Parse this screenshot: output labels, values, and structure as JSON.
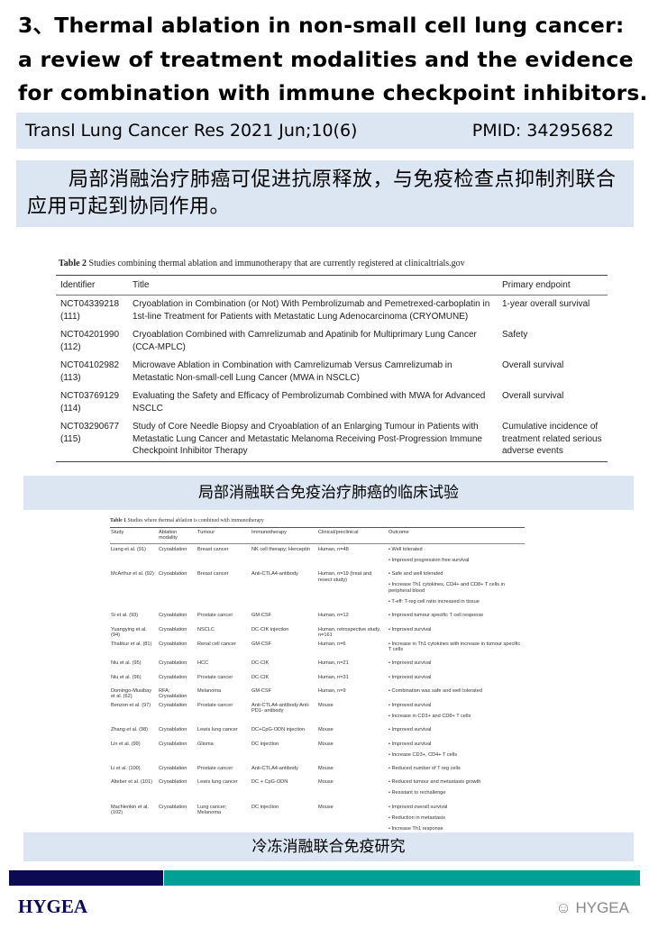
{
  "title": {
    "line1": "3、Thermal ablation in non-small cell lung cancer:",
    "line2": "a review of treatment modalities and the evidence",
    "line3": "for combination with immune checkpoint inhibitors."
  },
  "citation": {
    "journal": "Transl Lung Cancer Res 2021 Jun;10(6)",
    "pmid": "PMID: 34295682"
  },
  "summary": "局部消融治疗肺癌可促进抗原释放，与免疫检查点抑制剂联合应用可起到协同作用。",
  "table2": {
    "label": "Table 2",
    "caption": "Studies combining thermal ablation and immunotherapy that are currently registered at clinicaltrials.gov",
    "headers": [
      "Identifier",
      "Title",
      "Primary endpoint"
    ],
    "rows": [
      {
        "id": "NCT04339218 (111)",
        "title": "Cryoablation in Combination (or Not) With Pembrolizumab and Pemetrexed-carboplatin in 1st-line Treatment for Patients with Metastatic Lung Adenocarcinoma (CRYOMUNE)",
        "endpoint": "1-year overall survival"
      },
      {
        "id": "NCT04201990 (112)",
        "title": "Cryoablation Combined with Camrelizumab and Apatinib for Multiprimary Lung Cancer (CCA-MPLC)",
        "endpoint": "Safety"
      },
      {
        "id": "NCT04102982 (113)",
        "title": "Microwave Ablation in Combination with Camrelizumab Versus Camrelizumab in Metastatic Non-small-cell Lung Cancer (MWA in NSCLC)",
        "endpoint": "Overall survival"
      },
      {
        "id": "NCT03769129 (114)",
        "title": "Evaluating the Safety and Efficacy of Pembrolizumab Combined with MWA for Advanced NSCLC",
        "endpoint": "Overall survival"
      },
      {
        "id": "NCT03290677 (115)",
        "title": "Study of Core Needle Biopsy and Cryoablation of an Enlarging Tumour in Patients with Metastatic Lung Cancer and Metastatic Melanoma Receiving Post-Progression Immune Checkpoint Inhibitor Therapy",
        "endpoint": "Cumulative incidence of treatment related serious adverse events"
      }
    ]
  },
  "caption1": "局部消融联合免疫治疗肺癌的临床试验",
  "table1": {
    "label": "Table 1",
    "caption": "Studies where thermal ablation is combined with immunotherapy",
    "headers": [
      "Study",
      "Ablation modality",
      "Tumour",
      "Immunotherapy",
      "Clinical/preclinical",
      "Outcome"
    ],
    "rows": [
      {
        "study": "Liang et al. (91)",
        "modality": "Cryoablation",
        "tumour": "Breast cancer",
        "immuno": "NK cell therapy; Herceptin",
        "clinical": "Human, n=48",
        "outcomes": [
          "• Well tolerated",
          "• Improved progression free survival"
        ]
      },
      {
        "study": "McArthur et al. (92)",
        "modality": "Cryoablation",
        "tumour": "Breast cancer",
        "immuno": "Anti-CTLA4-antibody",
        "clinical": "Human, n=19 (treat and resect study)",
        "outcomes": [
          "• Safe and well tolerated",
          "• Increase Th1 cytokines, CD4+ and CD8+ T cells in peripheral blood",
          "• T-eff: T-reg cell ratio increased in tissue"
        ]
      },
      {
        "study": "Si et al. (93)",
        "modality": "Cryoablation",
        "tumour": "Prostate cancer",
        "immuno": "GM-CSF",
        "clinical": "Human, n=12",
        "outcomes": [
          "• Improved tumour specific T cell response"
        ]
      },
      {
        "study": "Yuangying et al. (94)",
        "modality": "Cryoablation",
        "tumour": "NSCLC",
        "immuno": "DC-CIK injection",
        "clinical": "Human, retrospective study, n=161",
        "outcomes": [
          "• Improved survival"
        ]
      },
      {
        "study": "Thakkur et al. (81)",
        "modality": "Cryoablation",
        "tumour": "Renal cell cancer",
        "immuno": "GM-CSF",
        "clinical": "Human, n=6",
        "outcomes": [
          "• Increase in Th1 cytokines with increase in tumour specific T cells"
        ]
      },
      {
        "study": "Niu et al. (95)",
        "modality": "Cryoablation",
        "tumour": "HCC",
        "immuno": "DC-CIK",
        "clinical": "Human, n=21",
        "outcomes": [
          "• Improved survival"
        ]
      },
      {
        "study": "Niu et al. (96)",
        "modality": "Cryoablation",
        "tumour": "Prostate cancer",
        "immuno": "DC-CIK",
        "clinical": "Human, n=31",
        "outcomes": [
          "• Improved survival"
        ]
      },
      {
        "study": "Domingo-Musibay et al. (62)",
        "modality": "RFA; Cryoablation",
        "tumour": "Melanoma",
        "immuno": "GM-CSF",
        "clinical": "Human, n=9",
        "outcomes": [
          "• Combination was safe and well tolerated"
        ]
      },
      {
        "study": "Benzon et al. (97)",
        "modality": "Cryoablation",
        "tumour": "Prostate cancer",
        "immuno": "Anti-CTLA4-antibody Anti-PD1- antibody",
        "clinical": "Mouse",
        "outcomes": [
          "• Improved survival",
          "• Increase in CD3+ and CD8+ T cells"
        ]
      },
      {
        "study": "Zhang et al. (98)",
        "modality": "Cryoablation",
        "tumour": "Lewis lung cancer",
        "immuno": "DC+CpG-ODN injection",
        "clinical": "Mouse",
        "outcomes": [
          "• Improved survival"
        ]
      },
      {
        "study": "Lin et al. (99)",
        "modality": "Cryoablation",
        "tumour": "Glioma",
        "immuno": "DC injection",
        "clinical": "Mouse",
        "outcomes": [
          "• Improved survival",
          "• Increase CD3+, CD4+ T cells"
        ]
      },
      {
        "study": "Li et al. (100)",
        "modality": "Cryoablation",
        "tumour": "Prostate cancer",
        "immuno": "Anti-CTLA4-antibody",
        "clinical": "Mouse",
        "outcomes": [
          "• Reduced number of T reg cells"
        ]
      },
      {
        "study": "Alteber et al. (101)",
        "modality": "Cryoablation",
        "tumour": "Lewis lung cancer",
        "immuno": "DC + CpG-ODN",
        "clinical": "Mouse",
        "outcomes": [
          "• Reduced tumour and metastasis growth",
          "• Resistant to rechallenge"
        ]
      },
      {
        "study": "Machlenkin et al. (102)",
        "modality": "Cryoablation",
        "tumour": "Lung cancer; Melanoma",
        "immuno": "DC injection",
        "clinical": "Mouse",
        "outcomes": [
          "• Improved overall survival",
          "• Reduction in metastasis",
          "• Increase Th1 response"
        ]
      }
    ]
  },
  "caption2": "冷冻消融联合免疫研究",
  "footer": {
    "logo": "HYGEA",
    "watermark": "HYGEA",
    "colors": {
      "navy": "#0c0a52",
      "teal": "#00a096"
    }
  }
}
